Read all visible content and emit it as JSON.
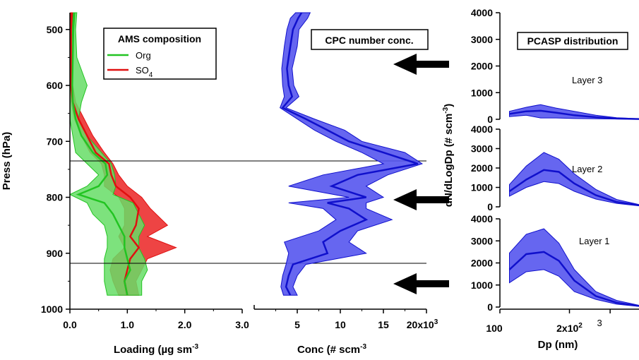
{
  "chart_data": [
    {
      "type": "line",
      "panel": "ams",
      "xlabel": "Loading (µg sm",
      "xlabel_sup": "-3",
      "ylabel": "Press (hPa)",
      "xlim": [
        0,
        3
      ],
      "ylim": [
        1000,
        470
      ],
      "y_reversed": true,
      "xticks": [
        "0.0",
        "1.0",
        "2.0",
        "3.0"
      ],
      "yticks": [
        "500",
        "600",
        "700",
        "800",
        "900",
        "1000"
      ],
      "legend": {
        "title": "AMS composition",
        "placement": "top-right",
        "entries": [
          {
            "label": "Org",
            "color": "#22c422"
          },
          {
            "label": "SO",
            "sub": "4",
            "color": "#e01010"
          }
        ]
      },
      "series": [
        {
          "name": "Org",
          "color": "#22c422",
          "fill": "#66dd66",
          "p": [
            470,
            500,
            550,
            600,
            630,
            660,
            690,
            720,
            740,
            760,
            780,
            795,
            810,
            830,
            850,
            870,
            890,
            910,
            930,
            950,
            975
          ],
          "mid": [
            0.08,
            0.06,
            0.05,
            0.04,
            0.05,
            0.1,
            0.2,
            0.4,
            0.62,
            0.65,
            0.5,
            0.15,
            0.6,
            0.75,
            0.85,
            0.95,
            0.95,
            1.0,
            1.05,
            0.95,
            1.0
          ],
          "lo": [
            0.06,
            0.04,
            0.02,
            0.0,
            0.0,
            0.0,
            0.05,
            0.1,
            0.3,
            0.5,
            0.3,
            0.0,
            0.3,
            0.4,
            0.6,
            0.65,
            0.65,
            0.6,
            0.6,
            0.6,
            0.65
          ],
          "hi": [
            0.12,
            0.1,
            0.12,
            0.3,
            0.2,
            0.15,
            0.3,
            0.55,
            0.72,
            0.78,
            0.8,
            0.75,
            1.1,
            1.2,
            1.3,
            1.2,
            1.2,
            1.3,
            1.35,
            1.25,
            1.25
          ]
        },
        {
          "name": "SO4",
          "color": "#e01010",
          "fill": "#ee4444",
          "p": [
            470,
            500,
            550,
            600,
            630,
            660,
            690,
            720,
            740,
            760,
            780,
            800,
            820,
            850,
            870,
            890,
            910,
            930,
            950,
            975
          ],
          "mid": [
            0.03,
            0.02,
            0.02,
            0.02,
            0.05,
            0.15,
            0.3,
            0.45,
            0.68,
            0.72,
            0.8,
            1.05,
            1.2,
            1.15,
            1.05,
            1.2,
            1.05,
            1.0,
            0.95,
            1.0
          ],
          "lo": [
            0.01,
            0.0,
            0.0,
            0.0,
            0.02,
            0.08,
            0.2,
            0.35,
            0.55,
            0.6,
            0.6,
            0.85,
            0.95,
            0.95,
            0.85,
            0.95,
            0.75,
            0.7,
            0.75,
            0.85
          ],
          "hi": [
            0.05,
            0.04,
            0.04,
            0.05,
            0.1,
            0.25,
            0.4,
            0.6,
            0.75,
            0.85,
            1.0,
            1.25,
            1.4,
            1.7,
            1.35,
            1.85,
            1.35,
            1.25,
            1.15,
            1.2
          ]
        }
      ],
      "hlines": [
        735,
        918
      ]
    },
    {
      "type": "line",
      "panel": "cpc",
      "title": "CPC number conc.",
      "xlabel": "Conc (# scm",
      "xlabel_sup": "-3",
      "xlim": [
        0,
        20000
      ],
      "xticks": [
        "5",
        "10",
        "15",
        "20x10"
      ],
      "xtick_sup": "3",
      "color": "#1010cc",
      "fill": "#5555ee",
      "p": [
        470,
        480,
        500,
        530,
        570,
        600,
        620,
        640,
        660,
        680,
        700,
        720,
        740,
        760,
        780,
        800,
        810,
        820,
        840,
        860,
        880,
        900,
        920,
        940,
        960,
        975
      ],
      "mid": [
        5500,
        5100,
        4500,
        4200,
        3800,
        4000,
        4400,
        3300,
        6000,
        8500,
        11000,
        15000,
        19000,
        12000,
        9000,
        13000,
        8500,
        11000,
        13000,
        10000,
        8000,
        8500,
        4500,
        4000,
        3700,
        4200
      ],
      "lo": [
        4800,
        4200,
        3800,
        3500,
        3200,
        3300,
        3500,
        3000,
        5000,
        7000,
        9500,
        12500,
        15000,
        8000,
        4000,
        11000,
        4000,
        8000,
        9500,
        7500,
        3500,
        4000,
        3700,
        3300,
        3100,
        3400
      ],
      "hi": [
        6500,
        6200,
        5200,
        5000,
        4400,
        4600,
        5200,
        3700,
        7000,
        10500,
        12500,
        17500,
        19500,
        15500,
        13000,
        15000,
        13000,
        13000,
        16000,
        12000,
        11000,
        13000,
        6000,
        5000,
        4500,
        5000
      ]
    },
    {
      "type": "area",
      "panel": "pcasp",
      "title": "PCASP distribution",
      "xlabel": "Dp (nm)",
      "ylabel": "dN/dLogDp (# scm",
      "ylabel_sup": "-3",
      "ylabel_close": ")",
      "x_scale": "log",
      "xlim": [
        100,
        400
      ],
      "xticks": [
        "100",
        "2x10",
        "3"
      ],
      "xtick_sup": "2",
      "ylim": [
        0,
        4000
      ],
      "yticks": [
        "0",
        "1000",
        "2000",
        "3000",
        "4000"
      ],
      "color": "#1010cc",
      "fill": "#5555ee",
      "layers": [
        {
          "name": "Layer 3",
          "x": [
            110,
            130,
            150,
            175,
            210,
            260,
            320,
            400
          ],
          "mid": [
            200,
            300,
            320,
            250,
            150,
            80,
            30,
            10
          ],
          "lo": [
            100,
            150,
            50,
            50,
            30,
            20,
            10,
            5
          ],
          "hi": [
            300,
            450,
            550,
            420,
            300,
            150,
            60,
            20
          ]
        },
        {
          "name": "Layer 2",
          "x": [
            110,
            130,
            155,
            180,
            210,
            260,
            320,
            400
          ],
          "mid": [
            800,
            1400,
            1900,
            1800,
            1200,
            600,
            250,
            80
          ],
          "lo": [
            550,
            1000,
            1300,
            1200,
            800,
            400,
            180,
            50
          ],
          "hi": [
            1150,
            2100,
            2800,
            2450,
            1700,
            900,
            380,
            120
          ]
        },
        {
          "name": "Layer 1",
          "x": [
            110,
            130,
            155,
            180,
            210,
            260,
            320,
            400
          ],
          "mid": [
            1700,
            2400,
            2500,
            2100,
            1200,
            500,
            200,
            50
          ],
          "lo": [
            1100,
            1600,
            1700,
            1400,
            700,
            350,
            130,
            30
          ],
          "hi": [
            2450,
            3300,
            3550,
            2900,
            1700,
            700,
            300,
            80
          ]
        }
      ]
    }
  ]
}
